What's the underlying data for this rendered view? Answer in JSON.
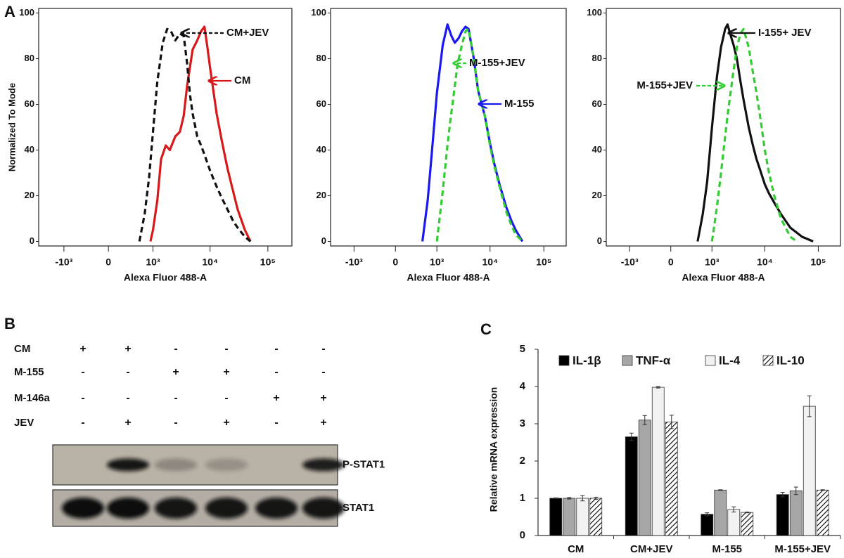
{
  "panels": [
    "A",
    "B",
    "C"
  ],
  "chart_data": [
    {
      "type": "line",
      "xscale": "biexponential",
      "ylabel": "Normalized To Mode",
      "xlabel": "Alexa Fluor 488-A",
      "xlim": [
        -2800,
        260000
      ],
      "ylim": [
        -2,
        102
      ],
      "xticks": [
        {
          "value": -1000,
          "label": "-10³"
        },
        0,
        {
          "value": 1000,
          "label": "10³"
        },
        {
          "value": 10000,
          "label": "10⁴"
        },
        {
          "value": 100000,
          "label": "10⁵"
        }
      ],
      "yticks": [
        0,
        20,
        40,
        60,
        80,
        100
      ],
      "series": [
        {
          "name": "CM",
          "color": "#d7191c",
          "dash": false,
          "x": [
            900,
            1000,
            1200,
            1400,
            1700,
            2000,
            2500,
            3000,
            3500,
            4000,
            5000,
            6000,
            7000,
            8000,
            9000,
            10000,
            13000,
            16000,
            20000,
            25000,
            30000,
            40000,
            50000
          ],
          "values": [
            0,
            5,
            18,
            36,
            42,
            40,
            46,
            48,
            55,
            68,
            84,
            88,
            92,
            94,
            85,
            76,
            56,
            44,
            32,
            22,
            14,
            5,
            0
          ]
        },
        {
          "name": "CM+JEV",
          "color": "#111111",
          "dash": true,
          "x": [
            550,
            700,
            850,
            1000,
            1200,
            1500,
            1800,
            2100,
            2500,
            3000,
            3500,
            4000,
            4500,
            5000,
            6000,
            7000,
            8000,
            10000,
            13000,
            16000,
            20000,
            25000,
            30000,
            40000,
            50000
          ],
          "values": [
            0,
            12,
            28,
            48,
            70,
            87,
            93,
            92,
            88,
            91,
            90,
            78,
            64,
            56,
            46,
            42,
            38,
            31,
            24,
            19,
            14,
            9,
            6,
            2,
            0
          ]
        }
      ]
    },
    {
      "type": "line",
      "xscale": "biexponential",
      "xlabel": "Alexa Fluor 488-A",
      "xlim": [
        -2800,
        260000
      ],
      "ylim": [
        -2,
        102
      ],
      "xticks": [
        {
          "value": -1000,
          "label": "-10³"
        },
        0,
        {
          "value": 1000,
          "label": "10³"
        },
        {
          "value": 10000,
          "label": "10⁴"
        },
        {
          "value": 100000,
          "label": "10⁵"
        }
      ],
      "yticks": [
        0,
        20,
        40,
        60,
        80,
        100
      ],
      "series": [
        {
          "name": "M-155",
          "color": "#1a1aee",
          "dash": false,
          "x": [
            500,
            650,
            800,
            1000,
            1300,
            1600,
            1900,
            2200,
            2600,
            3000,
            3500,
            4000,
            4500,
            5000,
            6000,
            7000,
            8000,
            10000,
            12000,
            15000,
            20000,
            25000,
            30000,
            40000
          ],
          "values": [
            0,
            18,
            40,
            65,
            86,
            95,
            90,
            87,
            89,
            92,
            94,
            93,
            86,
            80,
            66,
            60,
            55,
            43,
            34,
            25,
            15,
            9,
            5,
            0
          ]
        },
        {
          "name": "M-155+JEV",
          "color": "#33cc33",
          "dash": true,
          "x": [
            1000,
            1300,
            1600,
            1800,
            2200,
            2500,
            3000,
            3500,
            4000,
            4500,
            5000,
            6000,
            7000,
            8000,
            10000,
            12000,
            15000,
            20000,
            25000,
            30000,
            40000
          ],
          "values": [
            0,
            22,
            42,
            52,
            68,
            78,
            86,
            92,
            93,
            86,
            80,
            66,
            60,
            55,
            42,
            33,
            24,
            13,
            7,
            3,
            0
          ]
        }
      ]
    },
    {
      "type": "line",
      "xscale": "biexponential",
      "xlabel": "Alexa Fluor 488-A",
      "xlim": [
        -2800,
        260000
      ],
      "ylim": [
        -2,
        102
      ],
      "xticks": [
        {
          "value": -1000,
          "label": "-10³"
        },
        0,
        {
          "value": 1000,
          "label": "10³"
        },
        {
          "value": 10000,
          "label": "10⁴"
        },
        {
          "value": 100000,
          "label": "10⁵"
        }
      ],
      "yticks": [
        0,
        20,
        40,
        60,
        80,
        100
      ],
      "series": [
        {
          "name": "I-155+ JEV",
          "color": "#111111",
          "dash": false,
          "x": [
            500,
            650,
            800,
            1000,
            1250,
            1500,
            1800,
            2000,
            2300,
            2600,
            3000,
            3500,
            4000,
            5000,
            6000,
            7000,
            8000,
            10000,
            12000,
            15000,
            20000,
            30000,
            50000,
            80000
          ],
          "values": [
            0,
            12,
            26,
            50,
            72,
            85,
            93,
            95,
            90,
            86,
            80,
            70,
            62,
            50,
            42,
            36,
            32,
            25,
            21,
            17,
            12,
            6,
            2,
            0
          ]
        },
        {
          "name": "M-155+JEV",
          "color": "#33cc33",
          "dash": true,
          "x": [
            1000,
            1250,
            1500,
            1800,
            2000,
            2500,
            3000,
            3500,
            4000,
            5000,
            6000,
            7000,
            8500,
            10000,
            12000,
            15000,
            20000,
            30000,
            40000
          ],
          "values": [
            0,
            15,
            30,
            46,
            55,
            72,
            85,
            91,
            93,
            85,
            74,
            65,
            52,
            40,
            30,
            20,
            10,
            2,
            0
          ]
        }
      ]
    },
    {
      "type": "bar",
      "ylabel": "Relative mRNA expression",
      "categories": [
        "CM",
        "CM+JEV",
        "M-155",
        "M-155+JEV"
      ],
      "ylim": [
        0,
        5
      ],
      "yticks": [
        0,
        1,
        2,
        3,
        4,
        5
      ],
      "series": [
        {
          "name": "IL-1β",
          "color": "#000000",
          "pattern": "solid",
          "values": [
            1.0,
            2.65,
            0.57,
            1.1
          ],
          "errors": [
            0.01,
            0.1,
            0.04,
            0.06
          ]
        },
        {
          "name": "TNF-α",
          "color": "#a6a6a6",
          "pattern": "solid",
          "values": [
            1.0,
            3.1,
            1.22,
            1.2
          ],
          "errors": [
            0.02,
            0.12,
            0.01,
            0.1
          ]
        },
        {
          "name": "IL-4",
          "color": "#f2f2f2",
          "pattern": "solid",
          "values": [
            1.0,
            3.98,
            0.7,
            3.47
          ],
          "errors": [
            0.07,
            0.02,
            0.07,
            0.28
          ]
        },
        {
          "name": "IL-10",
          "color": "#000000",
          "pattern": "hatch",
          "values": [
            1.0,
            3.05,
            0.62,
            1.22
          ],
          "errors": [
            0.03,
            0.18,
            0.01,
            0.01
          ]
        }
      ]
    }
  ],
  "blot": {
    "rows": [
      {
        "label": "CM",
        "signs": [
          "+",
          "+",
          "-",
          "-",
          "-",
          "-"
        ]
      },
      {
        "label": "M-155",
        "signs": [
          "-",
          "-",
          "+",
          "+",
          "-",
          "-"
        ]
      },
      {
        "label": "M-146a",
        "signs": [
          "-",
          "-",
          "-",
          "-",
          "+",
          "+"
        ]
      },
      {
        "label": "JEV",
        "signs": [
          "-",
          "+",
          "-",
          "+",
          "-",
          "+"
        ]
      }
    ],
    "bands": [
      "P-STAT1",
      "STAT1"
    ]
  }
}
